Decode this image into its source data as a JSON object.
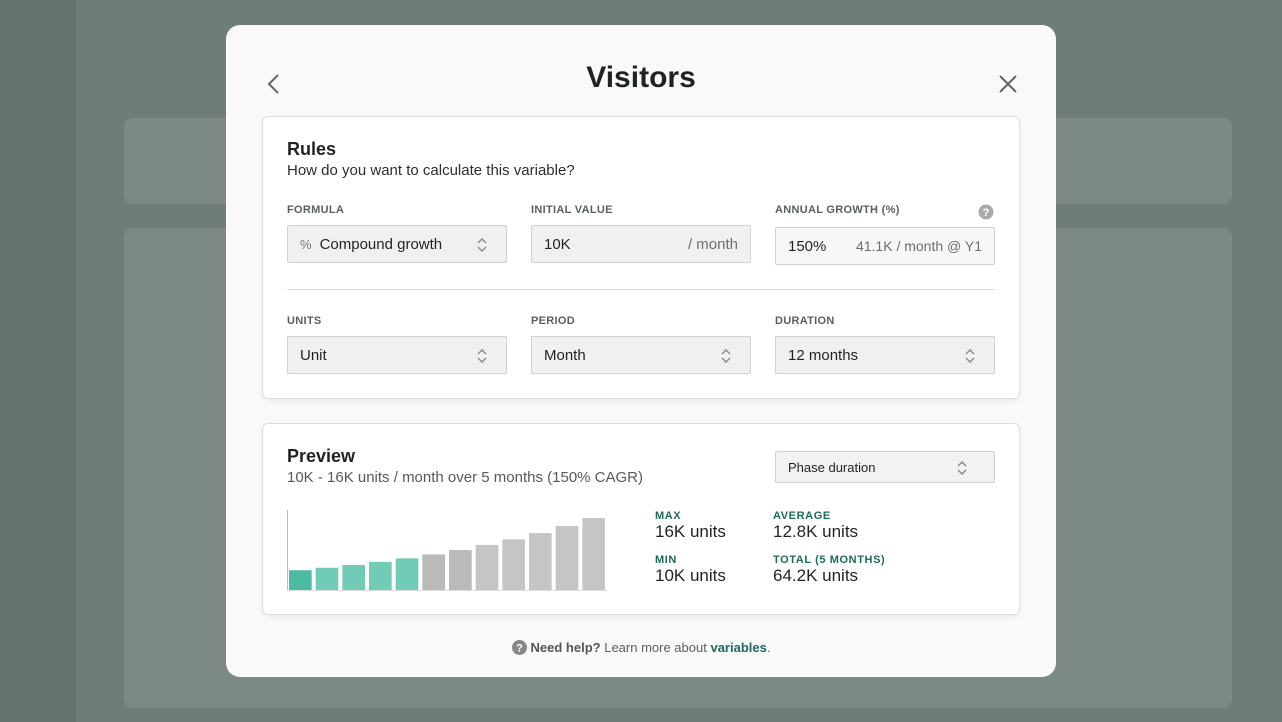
{
  "dialog": {
    "title": "Visitors"
  },
  "rules": {
    "title": "Rules",
    "subtitle": "How do you want to calculate this variable?",
    "formula": {
      "label": "FORMULA",
      "value": "Compound growth"
    },
    "initial_value": {
      "label": "INITIAL VALUE",
      "value": "10K",
      "suffix": "/ month"
    },
    "annual_growth": {
      "label": "ANNUAL GROWTH (%)",
      "value": "150%",
      "hint": "41.1K / month @ Y1"
    },
    "units": {
      "label": "UNITS",
      "value": "Unit"
    },
    "period": {
      "label": "PERIOD",
      "value": "Month"
    },
    "duration": {
      "label": "DURATION",
      "value": "12 months"
    }
  },
  "preview": {
    "title": "Preview",
    "subtitle": "10K - 16K units / month over 5 months (150% CAGR)",
    "range_select": "Phase duration",
    "stats": [
      {
        "label": "MAX",
        "value": "16K units"
      },
      {
        "label": "AVERAGE",
        "value": "12.8K units"
      },
      {
        "label": "MIN",
        "value": "10K units"
      },
      {
        "label": "TOTAL (5 MONTHS)",
        "value": "64.2K units"
      }
    ],
    "chart": {
      "type": "bar",
      "values": [
        10,
        11.25,
        12.65,
        14.23,
        16,
        18,
        20.2,
        22.8,
        25.6,
        28.8,
        32.4,
        36.4
      ],
      "colors": [
        "#4dbba3",
        "#72cbb7",
        "#72cbb7",
        "#72cbb7",
        "#72cbb7",
        "#b9bbbb",
        "#b9bbbb",
        "#c4c6c6",
        "#c4c6c6",
        "#c4c6c6",
        "#c4c6c6",
        "#c4c6c6"
      ]
    }
  },
  "help": {
    "prefix": "Need help?",
    "text": "Learn more about",
    "link": "variables",
    "end": "."
  }
}
